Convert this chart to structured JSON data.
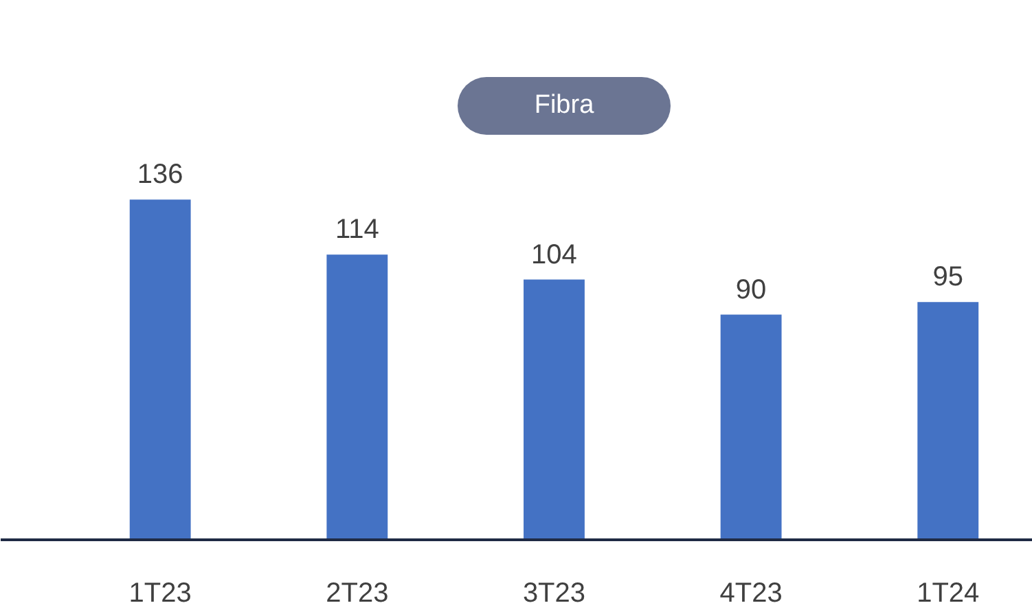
{
  "chart_data": {
    "type": "bar",
    "title": "Fibra",
    "categories": [
      "1T23",
      "2T23",
      "3T23",
      "4T23",
      "1T24"
    ],
    "values": [
      136,
      114,
      104,
      90,
      95
    ],
    "color": "#4472c4",
    "data_labels": true
  }
}
